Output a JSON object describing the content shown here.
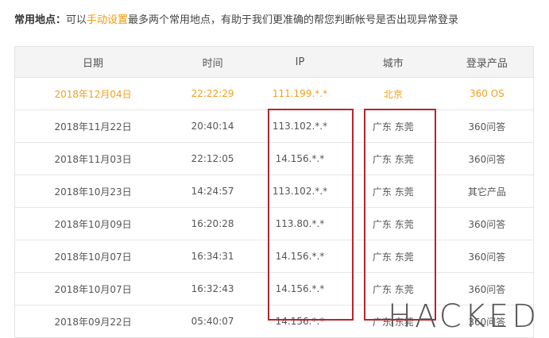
{
  "notice": {
    "label": "常用地点：",
    "prefix": "可以",
    "link": "手动设置",
    "suffix": "最多两个常用地点，有助于我们更准确的帮您判断帐号是否出现异常登录"
  },
  "table": {
    "columns": [
      "日期",
      "时间",
      "IP",
      "城市",
      "登录产品"
    ],
    "rows": [
      [
        "2018年12月04日",
        "22:22:29",
        "111.199.*.*",
        "北京",
        "360 OS"
      ],
      [
        "2018年11月22日",
        "20:40:14",
        "113.102.*.*",
        "广东 东莞",
        "360问答"
      ],
      [
        "2018年11月03日",
        "22:12:05",
        "14.156.*.*",
        "广东 东莞",
        "360问答"
      ],
      [
        "2018年10月23日",
        "14:24:57",
        "113.102.*.*",
        "广东 东莞",
        "其它产品"
      ],
      [
        "2018年10月09日",
        "16:20:28",
        "113.80.*.*",
        "广东 东莞",
        "360问答"
      ],
      [
        "2018年10月07日",
        "16:34:31",
        "14.156.*.*",
        "广东 东莞",
        "360问答"
      ],
      [
        "2018年10月07日",
        "16:32:43",
        "14.156.*.*",
        "广东 东莞",
        "360问答"
      ],
      [
        "2018年09月22日",
        "05:40:07",
        "14.156.*.*",
        "广东 东莞",
        "360问答"
      ]
    ]
  },
  "watermark": "HACKED"
}
